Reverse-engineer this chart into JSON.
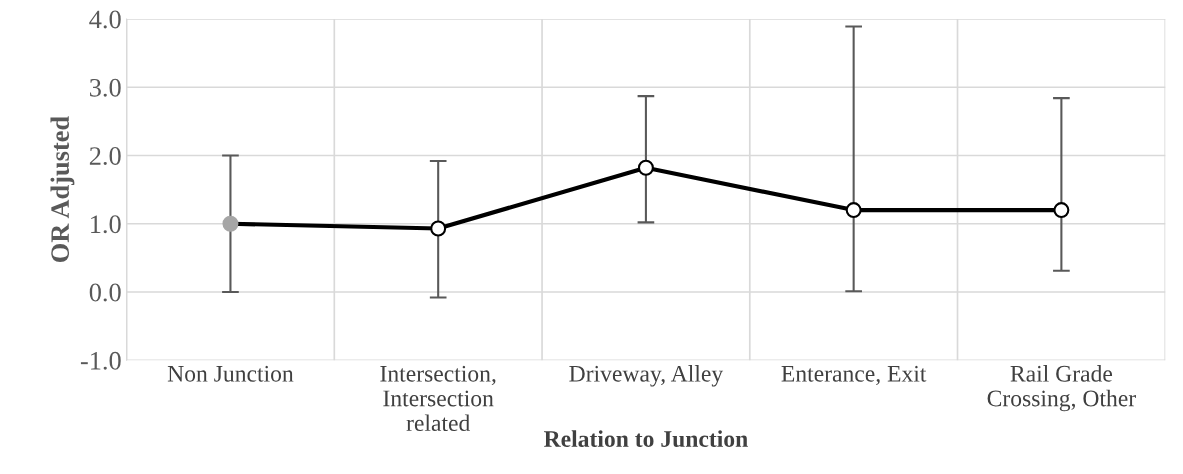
{
  "chart_data": {
    "type": "line",
    "xlabel": "Relation to Junction",
    "ylabel": "OR Adjusted",
    "categories": [
      "Non Junction",
      "Intersection,\nIntersection\nrelated",
      "Driveway, Alley",
      "Enterance, Exit",
      "Rail Grade\nCrossing, Other"
    ],
    "series": [
      {
        "color": "#000000",
        "colors": [
          "#a6a6a6",
          "#ffffff",
          "#ffffff",
          "#ffffff",
          "#ffffff"
        ],
        "values": [
          1.0,
          0.93,
          1.82,
          1.2,
          1.2
        ],
        "errors": [
          [
            0.0,
            2.0
          ],
          [
            -0.08,
            1.92
          ],
          [
            1.02,
            2.87
          ],
          [
            0.01,
            3.89
          ],
          [
            0.31,
            2.84
          ]
        ]
      }
    ],
    "ylim": [
      -1.0,
      4.0
    ],
    "yticks": [
      {
        "value": -1,
        "label": "-1.0"
      },
      {
        "value": 0,
        "label": "0.0"
      },
      {
        "value": 1,
        "label": "1.0"
      },
      {
        "value": 2,
        "label": "2.0"
      },
      {
        "value": 3,
        "label": "3.0"
      },
      {
        "value": 4,
        "label": "4.0"
      }
    ],
    "grid": true,
    "marker": "circle",
    "line_style": "solid"
  }
}
